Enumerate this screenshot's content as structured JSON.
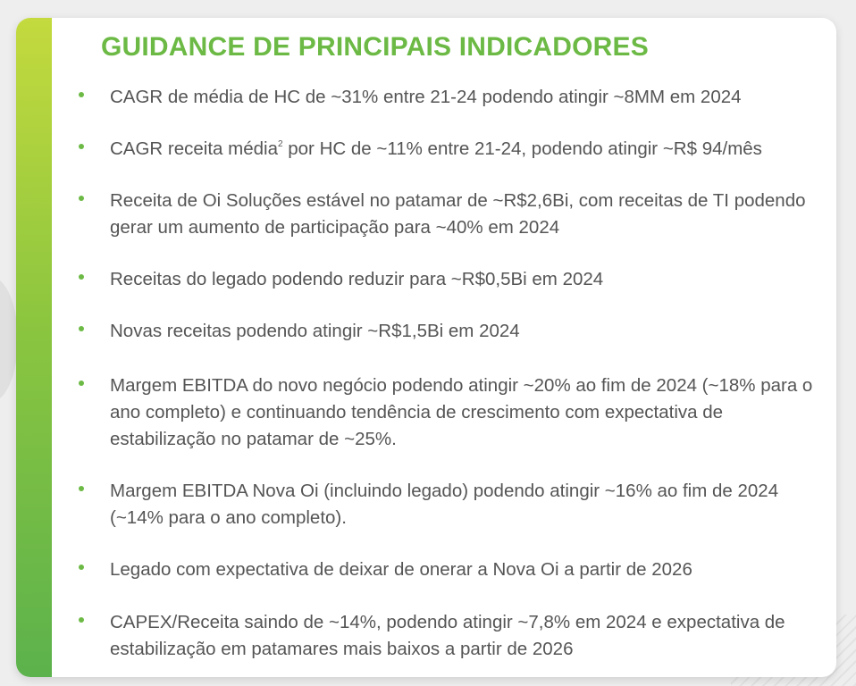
{
  "title": "GUIDANCE DE PRINCIPAIS INDICADORES",
  "colors": {
    "accent_green": "#6cba45",
    "bar_top": "#c4da3e",
    "bar_bottom": "#5cb24c",
    "text": "#555555"
  },
  "bullets": [
    {
      "text": "CAGR de média de HC de ~31% entre 21-24 podendo atingir ~8MM em 2024"
    },
    {
      "pre": "CAGR receita média",
      "sup": "2",
      "post": " por HC de ~11% entre 21-24, podendo atingir ~R$ 94/mês"
    },
    {
      "text": "Receita de Oi Soluções estável no patamar de ~R$2,6Bi, com receitas de TI podendo gerar um aumento de participação para ~40% em 2024"
    },
    {
      "text": "Receitas do legado podendo reduzir para ~R$0,5Bi em 2024"
    },
    {
      "text": "Novas receitas podendo atingir ~R$1,5Bi em 2024"
    },
    {
      "text": "Margem EBITDA do novo negócio podendo atingir ~20% ao fim de 2024 (~18% para o ano completo) e continuando tendência de crescimento com expectativa de estabilização no patamar de ~25%."
    },
    {
      "text": "Margem EBITDA Nova Oi (incluindo legado) podendo atingir ~16% ao fim de 2024 (~14% para o ano completo)."
    },
    {
      "text": "Legado com expectativa de deixar de onerar a Nova Oi a partir de 2026"
    },
    {
      "text": "CAPEX/Receita saindo de ~14%, podendo atingir ~7,8% em 2024 e expectativa de estabilização em patamares mais baixos a partir de 2026"
    }
  ]
}
